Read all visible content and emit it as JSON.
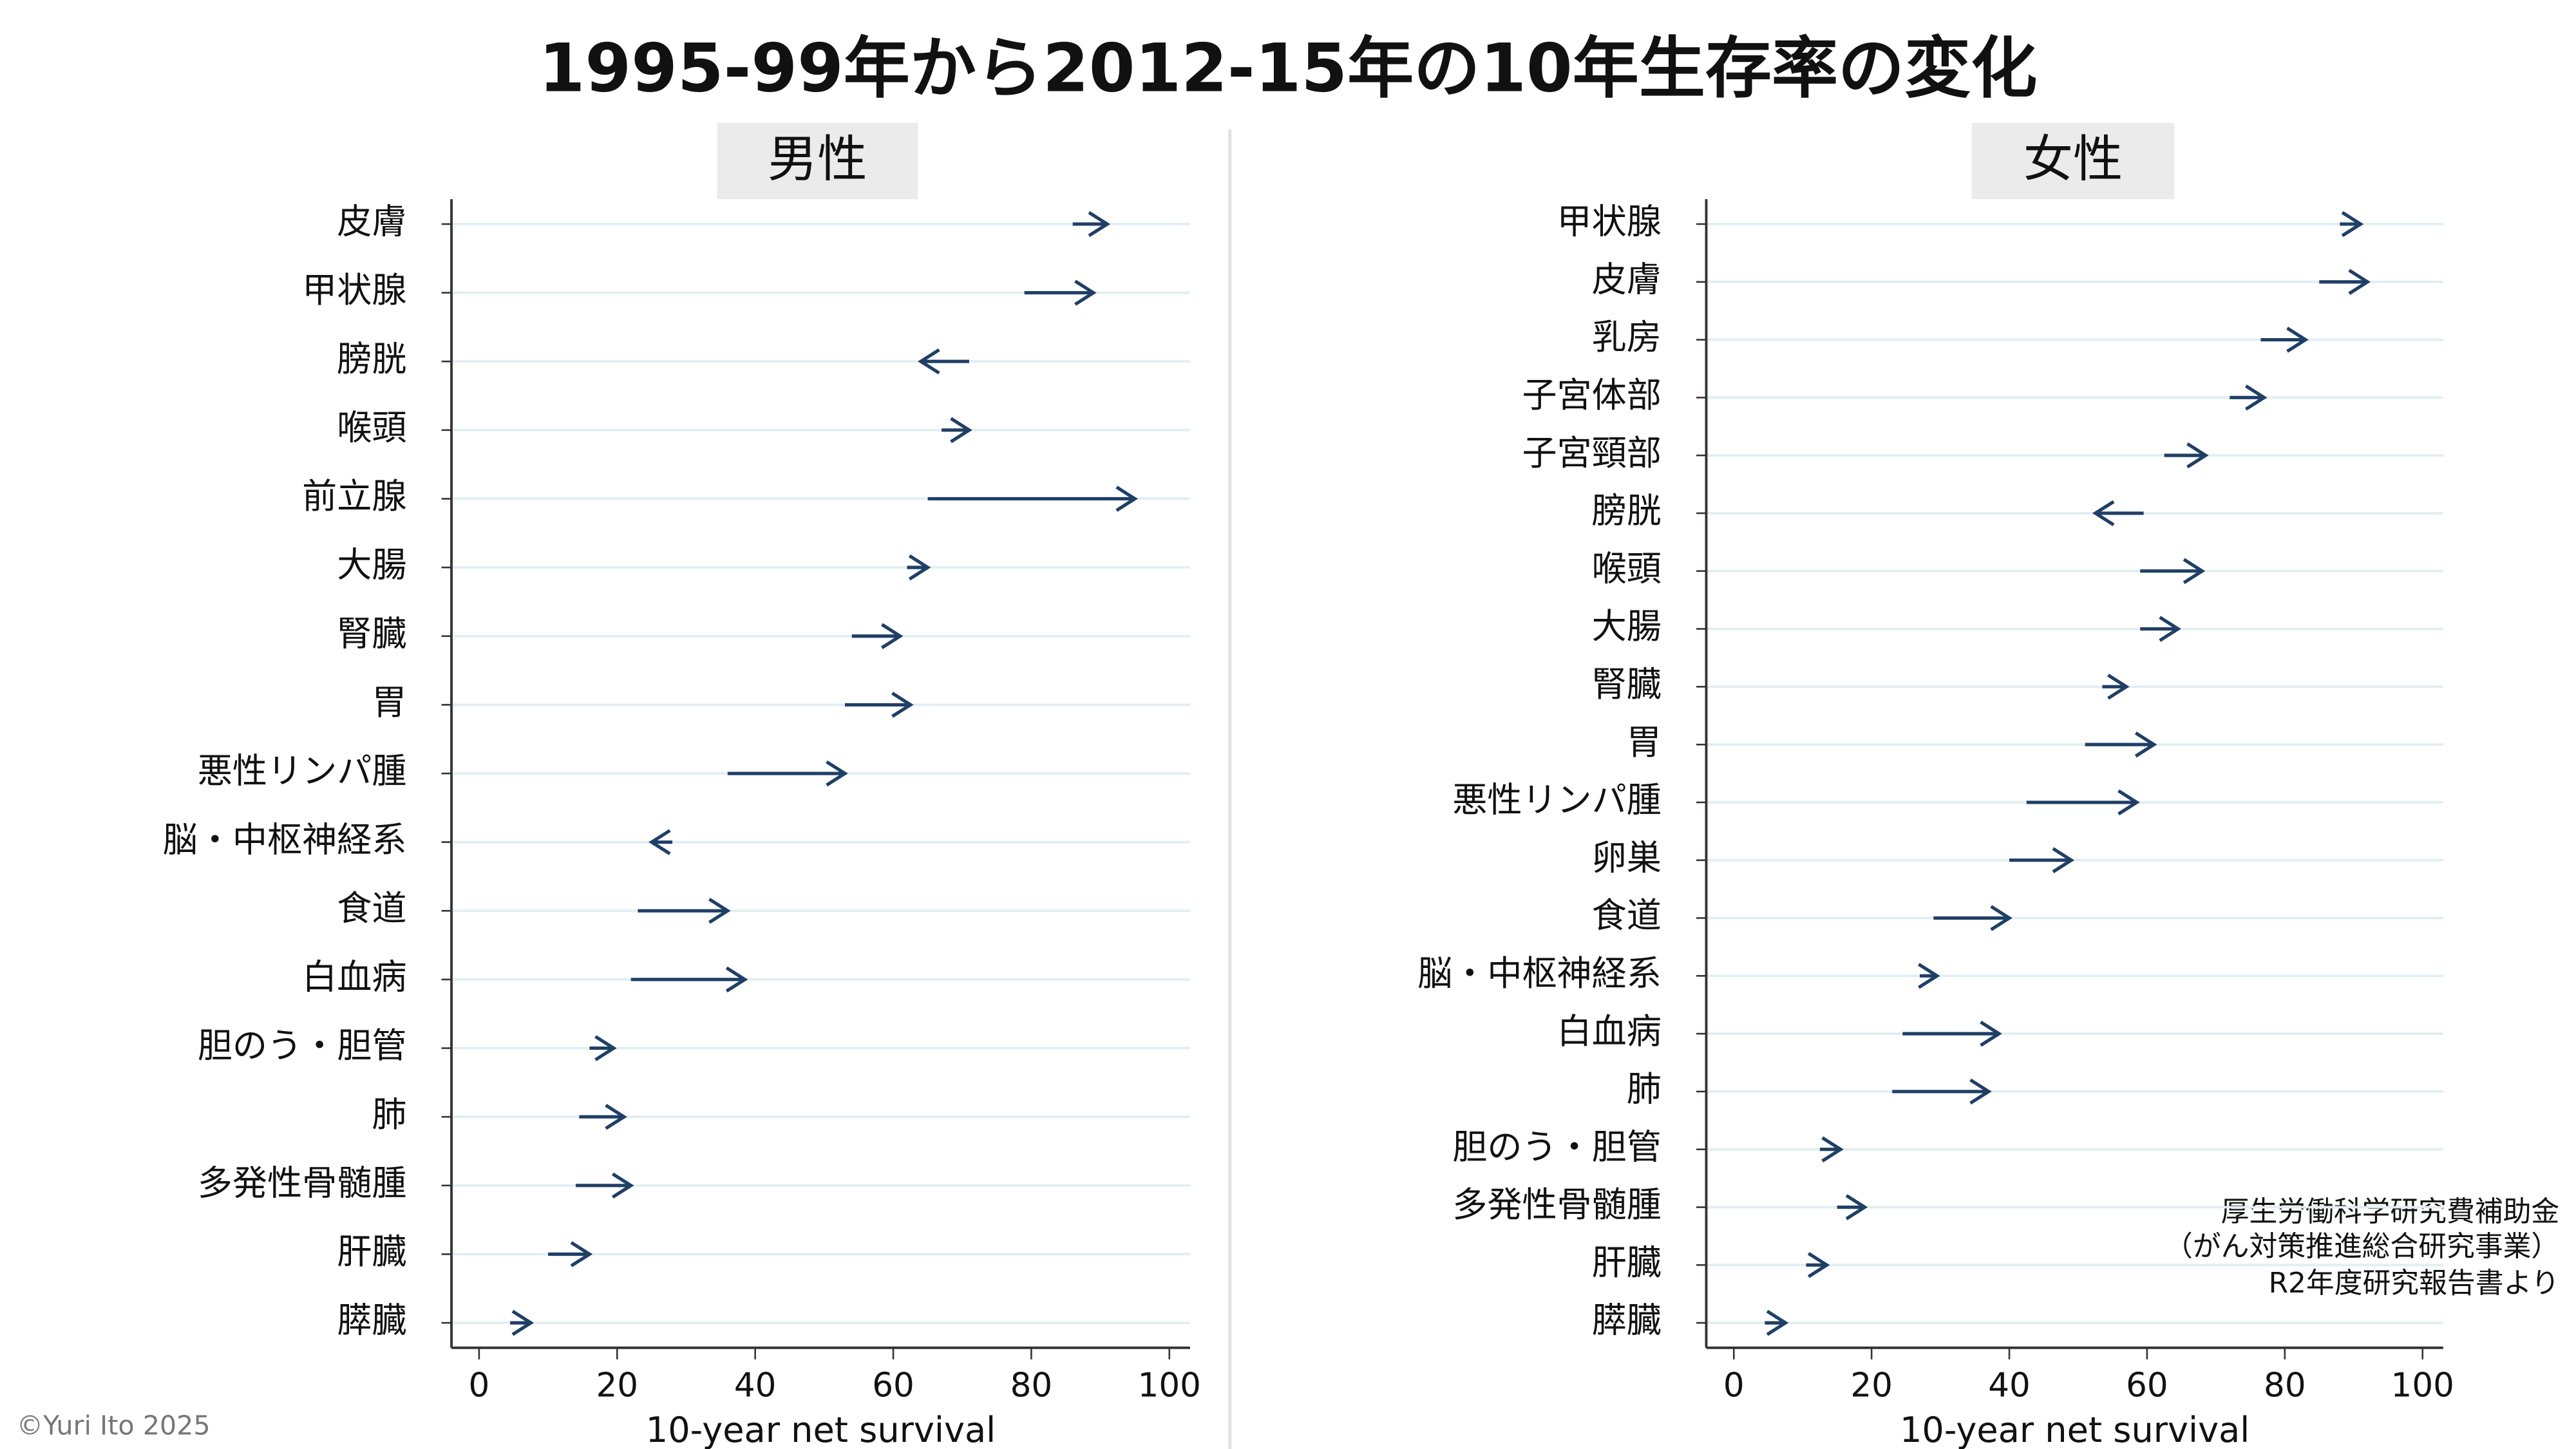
{
  "title": "1995-99年から2012-15年の10年生存率の変化",
  "copyright": "©Yuri Ito 2025",
  "note": [
    "厚生労働科学研究費補助金",
    "（がん対策推進総合研究事業）",
    "R2年度研究報告書より"
  ],
  "chart_data": [
    {
      "type": "arrow",
      "title": "男性",
      "categories": [
        "皮膚",
        "甲状腺",
        "膀胱",
        "喉頭",
        "前立腺",
        "大腸",
        "腎臓",
        "胃",
        "悪性リンパ腫",
        "脳・中枢神経系",
        "食道",
        "白血病",
        "胆のう・胆管",
        "肺",
        "多発性骨髄腫",
        "肝臓",
        "膵臓"
      ],
      "start": [
        86,
        79,
        71,
        67,
        65,
        62,
        54,
        53,
        36,
        28,
        23,
        22,
        16,
        14.5,
        14,
        10,
        4.5
      ],
      "end": [
        91,
        89,
        64,
        71,
        95,
        65,
        61,
        62.5,
        53,
        25,
        36,
        38.5,
        19.5,
        21,
        22,
        16,
        7.5
      ],
      "xlim": [
        -4,
        103
      ],
      "xticks": [
        0,
        20,
        40,
        60,
        80,
        100
      ],
      "xlabel": "10-year net survival",
      "color": "#1f3f66",
      "grid": true
    },
    {
      "type": "arrow",
      "title": "女性",
      "categories": [
        "甲状腺",
        "皮膚",
        "乳房",
        "子宮体部",
        "子宮頸部",
        "膀胱",
        "喉頭",
        "大腸",
        "腎臓",
        "胃",
        "悪性リンパ腫",
        "卵巣",
        "食道",
        "脳・中枢神経系",
        "白血病",
        "肺",
        "胆のう・胆管",
        "多発性骨髄腫",
        "肝臓",
        "膵臓"
      ],
      "start": [
        88,
        85,
        76.5,
        72,
        62.5,
        59.5,
        59,
        59,
        53.5,
        51,
        42.5,
        40,
        29,
        27,
        24.5,
        23,
        12.5,
        15,
        10.5,
        4.5
      ],
      "end": [
        91,
        92,
        83,
        77,
        68.5,
        52.5,
        68,
        64.5,
        57,
        61,
        58.5,
        49,
        40,
        29.5,
        38.5,
        37,
        15.5,
        19,
        13.5,
        7.5
      ],
      "xlim": [
        -4,
        103
      ],
      "xticks": [
        0,
        20,
        40,
        60,
        80,
        100
      ],
      "xlabel": "10-year net survival",
      "color": "#1f3f66",
      "grid": true
    }
  ]
}
